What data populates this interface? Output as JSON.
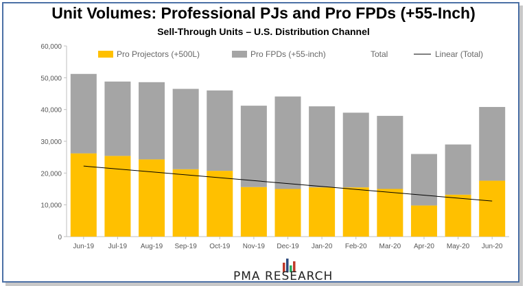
{
  "colors": {
    "projectors": "#FFC000",
    "fpds": "#A5A5A5",
    "linear": "#000000",
    "frame": "#4a6fa5"
  },
  "chart_data": {
    "type": "bar",
    "stacked": true,
    "title": "Unit Volumes:  Professional PJs and Pro FPDs (+55-Inch)",
    "subtitle": "Sell-Through Units – U.S. Distribution Channel",
    "categories": [
      "Jun-19",
      "Jul-19",
      "Aug-19",
      "Sep-19",
      "Oct-19",
      "Nov-19",
      "Dec-19",
      "Jan-20",
      "Feb-20",
      "Mar-20",
      "Apr-20",
      "May-20",
      "Jun-20"
    ],
    "series": [
      {
        "name": "Pro Projectors (+500L)",
        "values": [
          26200,
          25400,
          24300,
          21200,
          20700,
          15600,
          15000,
          15500,
          15500,
          15000,
          9800,
          13200,
          17600
        ]
      },
      {
        "name": "Pro FPDs (+55-inch)",
        "values": [
          25000,
          23400,
          24300,
          25300,
          25300,
          25600,
          29100,
          25500,
          23500,
          23000,
          16200,
          15800,
          23200
        ]
      }
    ],
    "legend": [
      "Pro Projectors (+500L)",
      "Pro FPDs (+55-inch)",
      "Total",
      "Linear (Total)"
    ],
    "trendline": {
      "name": "Linear (Total)",
      "start": 22200,
      "end": 11200
    },
    "y_ticks": [
      "0",
      "10,000",
      "20,000",
      "30,000",
      "40,000",
      "50,000",
      "60,000"
    ],
    "ylim": [
      0,
      60000
    ],
    "legend_position": "top",
    "grid": false
  },
  "branding": {
    "text": "PMA RESEARCH"
  }
}
